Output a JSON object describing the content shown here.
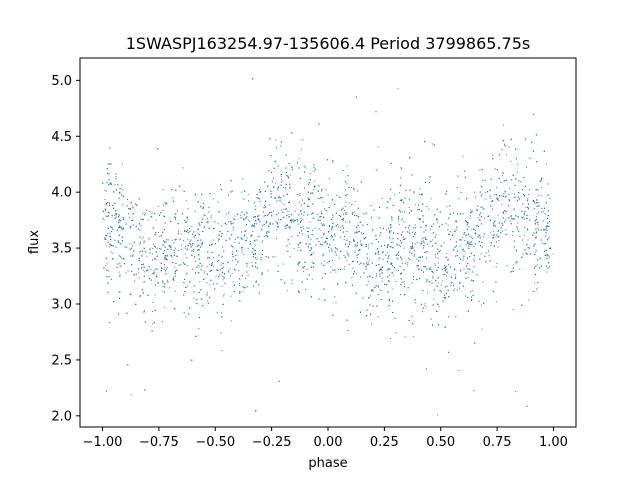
{
  "chart_data": {
    "type": "scatter",
    "title": "1SWASPJ163254.97-135606.4 Period 3799865.75s",
    "xlabel": "phase",
    "ylabel": "flux",
    "xlim": [
      -1.1,
      1.1
    ],
    "ylim": [
      1.9,
      5.2
    ],
    "xticks": [
      -1.0,
      -0.75,
      -0.5,
      -0.25,
      0.0,
      0.25,
      0.5,
      0.75,
      1.0
    ],
    "xtick_labels": [
      "−1.00",
      "−0.75",
      "−0.50",
      "−0.25",
      "0.00",
      "0.25",
      "0.50",
      "0.75",
      "1.00"
    ],
    "yticks": [
      2.0,
      2.5,
      3.0,
      3.5,
      4.0,
      4.5,
      5.0
    ],
    "ytick_labels": [
      "2.0",
      "2.5",
      "3.0",
      "3.5",
      "4.0",
      "4.5",
      "5.0"
    ],
    "grid": false,
    "marker_color": "#1f77b4",
    "series": [
      {
        "x_range": [
          -1.0,
          1.0
        ],
        "profile": [
          {
            "phase": -1.0,
            "flux": 3.7
          },
          {
            "phase": -0.9,
            "flux": 3.6
          },
          {
            "phase": -0.8,
            "flux": 3.4
          },
          {
            "phase": -0.7,
            "flux": 3.55
          },
          {
            "phase": -0.6,
            "flux": 3.5
          },
          {
            "phase": -0.5,
            "flux": 3.35
          },
          {
            "phase": -0.4,
            "flux": 3.5
          },
          {
            "phase": -0.3,
            "flux": 3.65
          },
          {
            "phase": -0.2,
            "flux": 3.9
          },
          {
            "phase": -0.1,
            "flux": 3.75
          },
          {
            "phase": 0.0,
            "flux": 3.7
          },
          {
            "phase": 0.1,
            "flux": 3.6
          },
          {
            "phase": 0.2,
            "flux": 3.4
          },
          {
            "phase": 0.3,
            "flux": 3.55
          },
          {
            "phase": 0.4,
            "flux": 3.5
          },
          {
            "phase": 0.5,
            "flux": 3.35
          },
          {
            "phase": 0.6,
            "flux": 3.5
          },
          {
            "phase": 0.7,
            "flux": 3.65
          },
          {
            "phase": 0.8,
            "flux": 3.9
          },
          {
            "phase": 0.9,
            "flux": 3.75
          },
          {
            "phase": 1.0,
            "flux": 3.7
          }
        ],
        "scatter_sigma": 0.28,
        "outlier_range": [
          2.0,
          5.05
        ]
      }
    ]
  }
}
